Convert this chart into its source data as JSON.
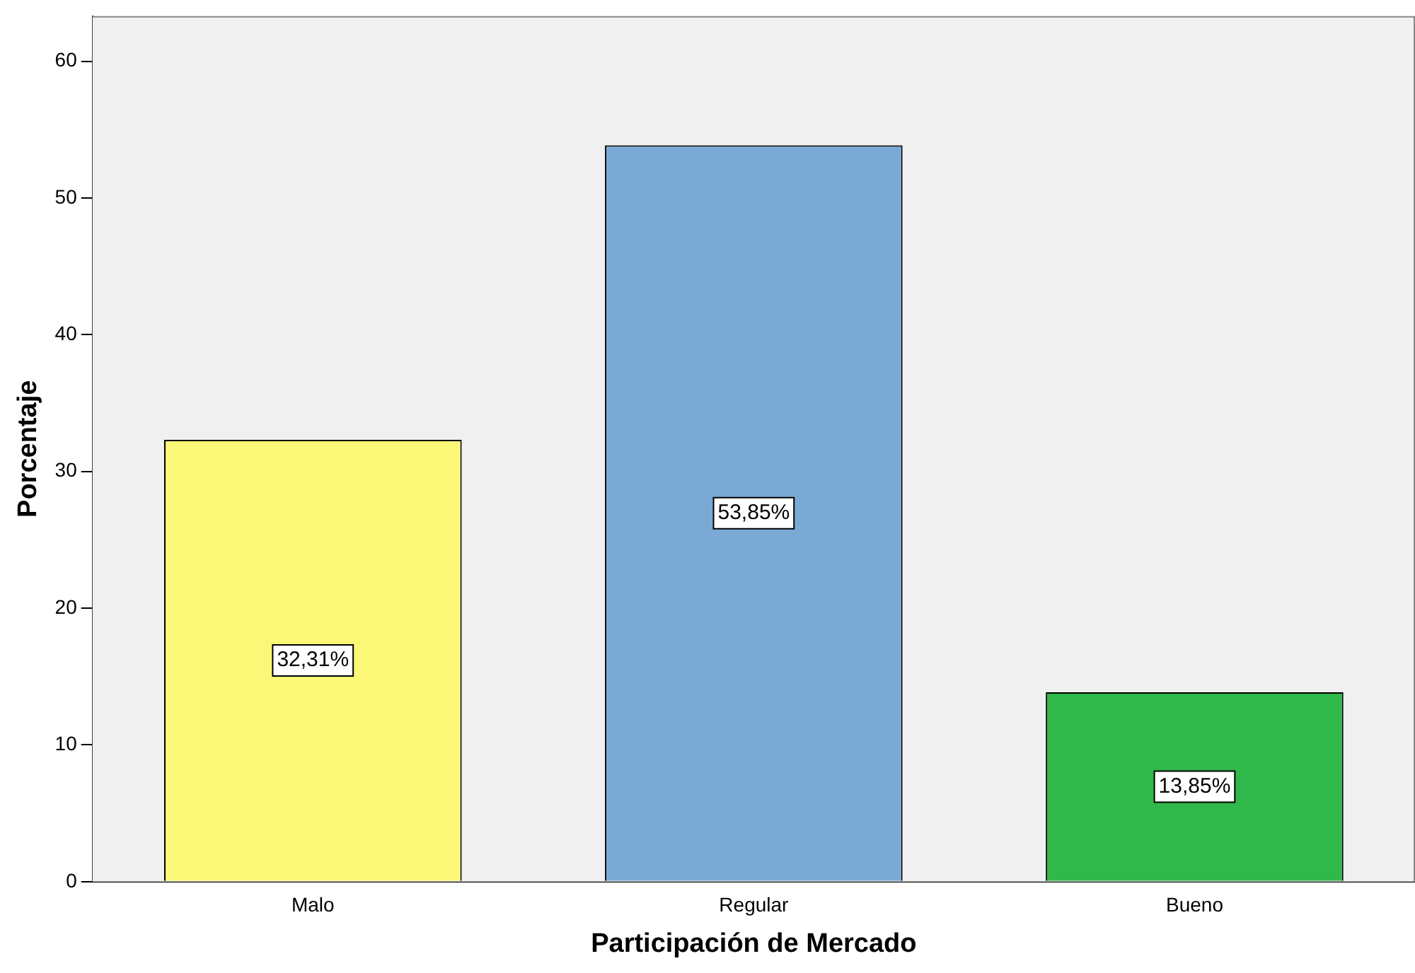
{
  "chart_data": {
    "type": "bar",
    "xlabel": "Participación de Mercado",
    "ylabel": "Porcentaje",
    "categories": [
      "Malo",
      "Regular",
      "Bueno"
    ],
    "values": [
      32.31,
      53.85,
      13.85
    ],
    "colors": [
      "#fbf877",
      "#7ba9d6",
      "#30b84a"
    ],
    "value_labels": [
      "32,31%",
      "53,85%",
      "13,85%"
    ],
    "ylim": [
      0,
      63.3
    ],
    "yticks": [
      0,
      10,
      20,
      30,
      40,
      50,
      60
    ]
  }
}
